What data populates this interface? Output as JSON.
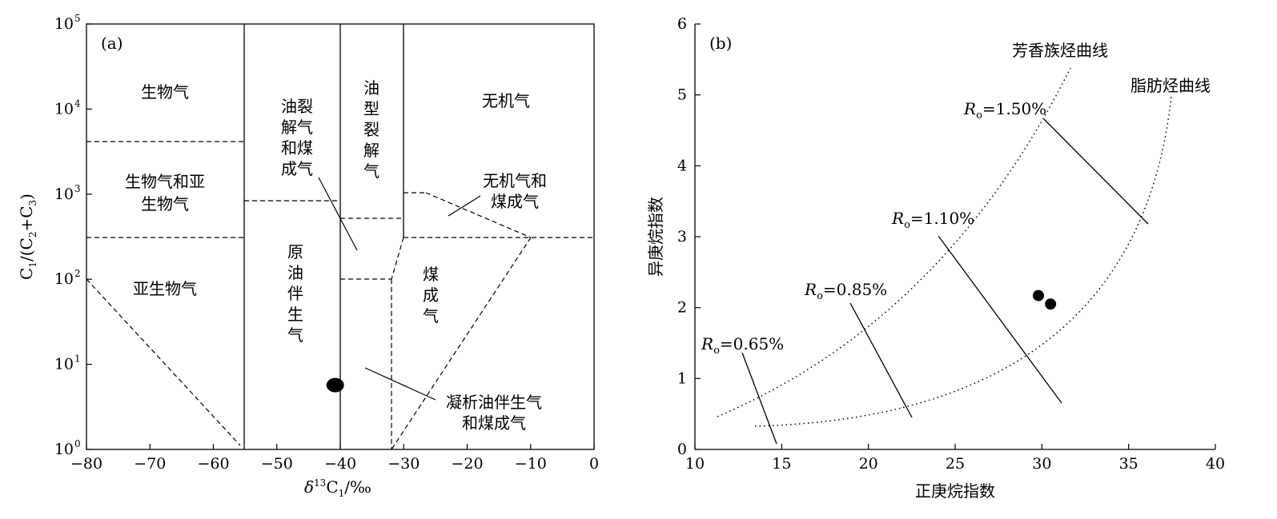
{
  "chart_data": [
    {
      "type": "scatter",
      "panel_label": "(a)",
      "xlabel": "δ13C1/‰",
      "ylabel": "C1/(C2+C3)",
      "xlim": [
        -80,
        0
      ],
      "ylim": [
        1,
        100000
      ],
      "y_scale": "log",
      "x_ticks": [
        "−80",
        "−70",
        "−60",
        "−50",
        "−40",
        "−30",
        "−20",
        "−10",
        "0"
      ],
      "y_ticks_mantissa": [
        "10",
        "10",
        "10",
        "10",
        "10",
        "10"
      ],
      "y_ticks_exp": [
        "0",
        "1",
        "2",
        "3",
        "4",
        "5"
      ],
      "regions": [
        "生物气",
        "生物气和亚",
        "生物气",
        "亚生物气",
        "油裂",
        "解气",
        "和煤",
        "成气",
        "油",
        "型",
        "裂",
        "解",
        "气",
        "无机气",
        "无机气和",
        "煤成气",
        "原",
        "油",
        "伴",
        "生",
        "气",
        "煤",
        "成",
        "气",
        "凝析油伴生气",
        "和煤成气"
      ],
      "points": [
        {
          "x": -40.8,
          "y": 5.7
        }
      ]
    },
    {
      "type": "scatter",
      "panel_label": "(b)",
      "xlabel": "正庚烷指数",
      "ylabel": "异庚烷指数",
      "xlim": [
        10,
        40
      ],
      "ylim": [
        0,
        6
      ],
      "x_ticks": [
        "10",
        "15",
        "20",
        "25",
        "30",
        "35",
        "40"
      ],
      "y_ticks": [
        "0",
        "1",
        "2",
        "3",
        "4",
        "5",
        "6"
      ],
      "curves": [
        "芳香族烃曲线",
        "脂肪烃曲线"
      ],
      "maturity_lines": [
        {
          "sym": "R",
          "sub": "o",
          "val": "=0.65%"
        },
        {
          "sym": "R",
          "sub": "o",
          "val": "=0.85%"
        },
        {
          "sym": "R",
          "sub": "o",
          "val": "=1.10%"
        },
        {
          "sym": "R",
          "sub": "o",
          "val": "=1.50%"
        }
      ],
      "points": [
        {
          "x": 29.8,
          "y": 2.17
        },
        {
          "x": 30.5,
          "y": 2.05
        }
      ]
    }
  ]
}
